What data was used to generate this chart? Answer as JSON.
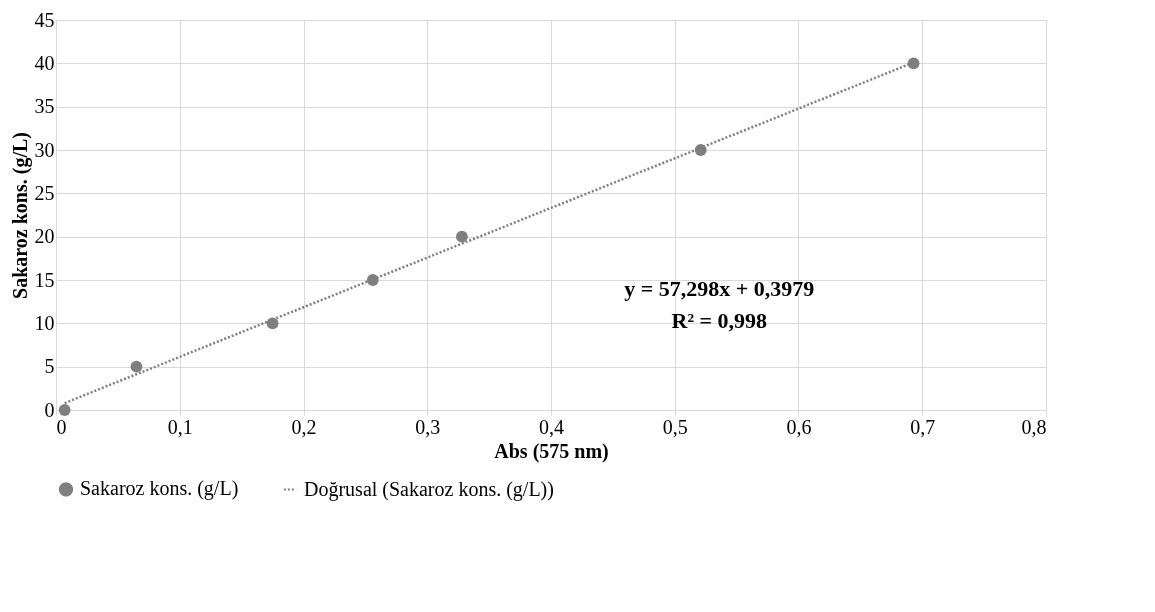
{
  "chart_data": {
    "type": "scatter",
    "xlabel": "Abs (575 nm)",
    "ylabel": "Sakaroz kons. (g/L)",
    "series": [
      {
        "name": "Sakaroz kons. (g/L)",
        "color": "#7f7f7f",
        "marker": "circle",
        "x": [
          0.007,
          0.065,
          0.175,
          0.256,
          0.328,
          0.521,
          0.693
        ],
        "values": [
          0,
          5,
          10,
          15,
          20,
          30,
          40
        ]
      },
      {
        "name": "Doğrusal (Sakaroz kons. (g/L))",
        "type": "line",
        "color": "#7f7f7f",
        "line_style": "dotted",
        "x": [
          0.007,
          0.693
        ],
        "values": [
          0.8,
          40.1
        ]
      }
    ],
    "xlim": [
      0,
      0.8
    ],
    "xticks": [
      0,
      {
        "value": 0.1,
        "label": "0,1"
      },
      {
        "value": 0.2,
        "label": "0,2"
      },
      {
        "value": 0.3,
        "label": "0,3"
      },
      {
        "value": 0.4,
        "label": "0,4"
      },
      {
        "value": 0.5,
        "label": "0,5"
      },
      {
        "value": 0.6,
        "label": "0,6"
      },
      {
        "value": 0.7,
        "label": "0,7"
      },
      {
        "value": 0.8,
        "label": "0,8"
      }
    ],
    "ylim": [
      0,
      45
    ],
    "yticks": [
      0,
      5,
      10,
      15,
      20,
      25,
      30,
      35,
      40,
      45
    ],
    "annotations": [
      "y = 57,298x + 0,3979",
      "R² = 0,998"
    ],
    "grid": true,
    "legend": "bottom"
  }
}
